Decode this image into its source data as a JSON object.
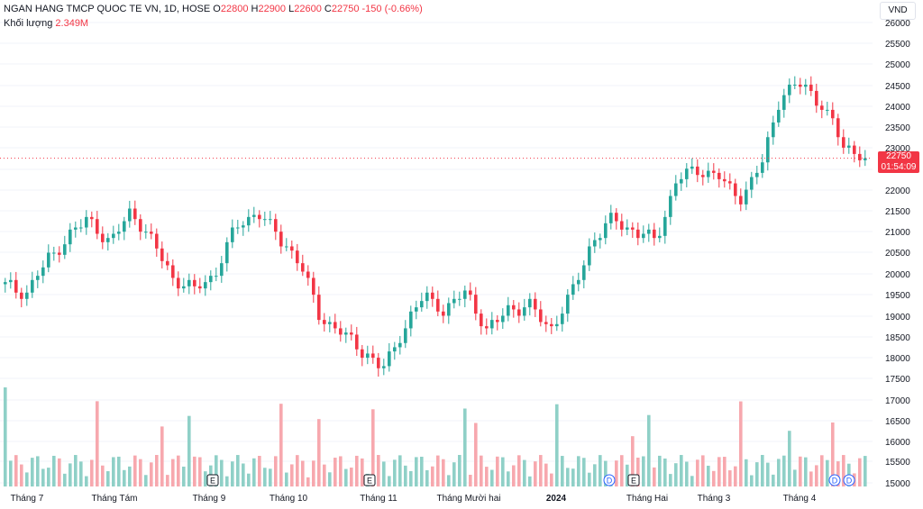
{
  "header": {
    "symbol_line": "NGAN HANG TMCP QUOC TE VN, 1D, HOSE",
    "o_label": "O",
    "o_value": "22800",
    "h_label": "H",
    "h_value": "22900",
    "l_label": "L",
    "l_value": "22600",
    "c_label": "C",
    "c_value": "22750",
    "change": "-150 (-0.66%)",
    "volume_label": "Khối lượng",
    "volume_value": "2.349M"
  },
  "currency": "VND",
  "price_tag": {
    "price": "22750",
    "countdown": "01:54:09"
  },
  "colors": {
    "up": "#26a69a",
    "down": "#f23645",
    "vol_up": "#8fd0c7",
    "vol_down": "#f7a8ae",
    "grid": "#f0f3fa",
    "text": "#131722"
  },
  "chart_data": {
    "type": "candlestick",
    "interval": "1D",
    "ylim": [
      15000,
      26000
    ],
    "y_ticks": [
      15000,
      15500,
      16000,
      16500,
      17000,
      17500,
      18000,
      18500,
      19000,
      19500,
      20000,
      20500,
      21000,
      21500,
      22000,
      22500,
      23000,
      23500,
      24000,
      24500,
      25000,
      25500,
      26000
    ],
    "x_ticks": [
      "Tháng 7",
      "Tháng Tám",
      "Tháng 9",
      "Tháng 10",
      "Tháng 11",
      "Tháng Mười hai",
      "2024",
      "Tháng Hai",
      "Tháng 3",
      "Tháng 4"
    ],
    "last_price": 22750,
    "events": [
      "E",
      "E",
      "D",
      "E",
      "D",
      "D"
    ],
    "close_anchors": [
      19700,
      19550,
      20300,
      20900,
      21300,
      20700,
      21500,
      20750,
      19900,
      19600,
      20000,
      21100,
      21500,
      20900,
      20300,
      19000,
      18600,
      18200,
      17700,
      18700,
      19500,
      19100,
      19600,
      18600,
      19200,
      19200,
      18700,
      19500,
      20800,
      21300,
      21000,
      20800,
      22200,
      22500,
      22300,
      21800,
      22500,
      24300,
      24500,
      24000,
      23000,
      22800
    ],
    "volume_note": "Volume bars in the lower pane, unscaled axis"
  }
}
